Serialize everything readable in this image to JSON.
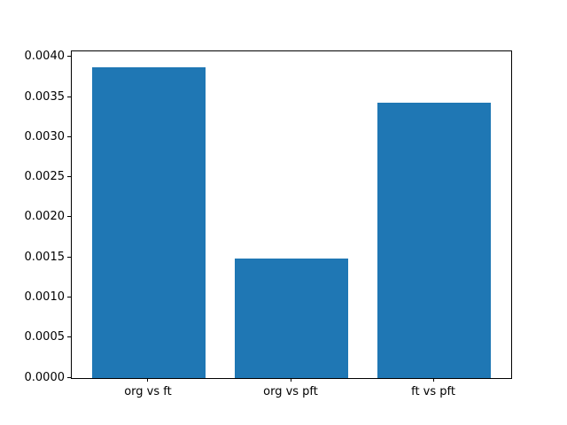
{
  "chart_data": {
    "type": "bar",
    "categories": [
      "org vs ft",
      "org vs pft",
      "ft vs pft"
    ],
    "values": [
      0.00388,
      0.00149,
      0.00344
    ],
    "title": "",
    "xlabel": "",
    "ylabel": "",
    "ylim": [
      0,
      0.004077
    ],
    "xlim": [
      -0.54,
      2.54
    ],
    "x_positions": [
      0,
      1,
      2
    ],
    "bar_width": 0.8,
    "yticks": [
      0.0,
      0.0005,
      0.001,
      0.0015,
      0.002,
      0.0025,
      0.003,
      0.0035,
      0.004
    ],
    "ytick_labels": [
      "0.0000",
      "0.0005",
      "0.0010",
      "0.0015",
      "0.0020",
      "0.0025",
      "0.0030",
      "0.0035",
      "0.0040"
    ],
    "bar_color": "#1f77b4",
    "grid": false,
    "legend": null
  }
}
